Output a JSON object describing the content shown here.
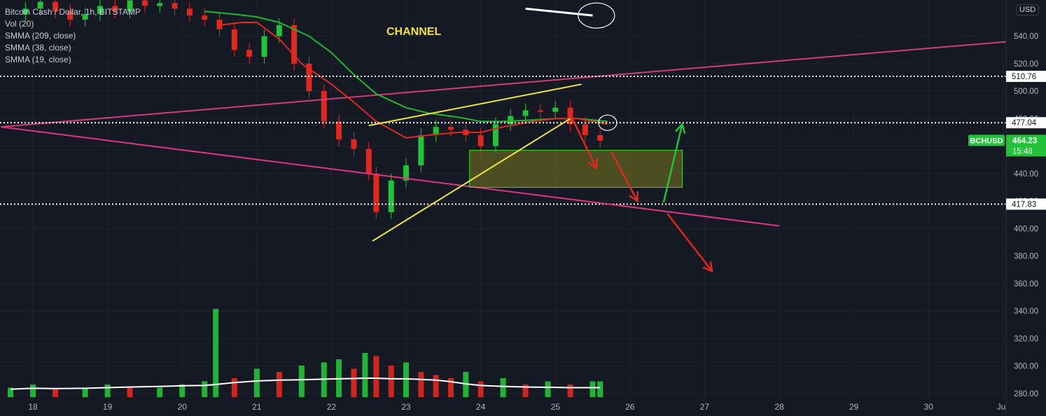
{
  "legend": {
    "symbol": "Bitcoin Cash / Dollar, 1h, BITSTAMP",
    "volume": "Vol (20)",
    "indicators": [
      "SMMA (209, close)",
      "SMMA (38, close)",
      "SMMA (19, close)"
    ]
  },
  "currency_badge": "USD",
  "colors": {
    "background": "#151924",
    "grid": "#1f2431",
    "candle_up": "#26a69a",
    "up": "#22c33b",
    "down": "#e0281e",
    "smma_long": "#d33b7e",
    "smma_mid": "#21b830",
    "smma_short": "#e0281e",
    "volume_ma": "#ffffff",
    "wedge": "#f2e33a",
    "zone_fill": "#7a7a20",
    "zone_border": "#44d430",
    "channel_line": "#e23384",
    "axis_text": "#b2b5be"
  },
  "chart_data": {
    "type": "candlestick",
    "symbol": "BCHUSD",
    "timeframe": "1h",
    "exchange": "BITSTAMP",
    "x_labels": [
      "18",
      "19",
      "20",
      "21",
      "22",
      "23",
      "24",
      "25",
      "26",
      "27",
      "28",
      "29",
      "30",
      "Juil"
    ],
    "y_ticks": [
      280,
      300,
      320,
      340,
      360,
      380,
      400,
      420,
      440,
      460,
      480,
      500,
      520,
      540
    ],
    "y_tick_labels": [
      "280.00",
      "300.00",
      "320.00",
      "340.00",
      "360.00",
      "380.00",
      "400.00",
      "420.00",
      "440.00",
      "460.00",
      "480.00",
      "500.00",
      "520.00",
      "540.00"
    ],
    "ylim": [
      276,
      557
    ],
    "xlim": [
      17.57,
      31.05
    ],
    "price_series": {
      "x": [
        17.9,
        18.1,
        18.3,
        18.5,
        18.7,
        18.9,
        19.1,
        19.3,
        19.5,
        19.7,
        19.9,
        20.1,
        20.3,
        20.5,
        20.7,
        20.9,
        21.1,
        21.3,
        21.5,
        21.7,
        21.9,
        22.1,
        22.3,
        22.5,
        22.6,
        22.8,
        23.0,
        23.2,
        23.4,
        23.6,
        23.8,
        24.0,
        24.2,
        24.4,
        24.6,
        24.8,
        25.0,
        25.2,
        25.4,
        25.6
      ],
      "values": [
        560,
        565,
        558,
        552,
        556,
        562,
        558,
        566,
        562,
        564,
        560,
        555,
        552,
        545,
        530,
        525,
        540,
        548,
        520,
        500,
        478,
        465,
        458,
        440,
        412,
        435,
        446,
        468,
        474,
        472,
        468,
        460,
        476,
        482,
        486,
        485,
        488,
        476,
        468,
        464
      ]
    },
    "smma_long": {
      "name": "SMMA (209, close)",
      "x": [
        17.57,
        31.05
      ],
      "values": [
        474,
        536
      ]
    },
    "smma_mid": {
      "name": "SMMA (38, close)",
      "x": [
        20.3,
        20.7,
        21.0,
        21.3,
        21.7,
        22.0,
        22.3,
        22.6,
        23.0,
        23.3,
        23.7,
        24.0,
        24.3,
        24.7,
        25.0,
        25.3,
        25.7
      ],
      "values": [
        558,
        556,
        554,
        550,
        540,
        528,
        512,
        498,
        488,
        484,
        481,
        478,
        478,
        479,
        480,
        480,
        478
      ]
    },
    "smma_short": {
      "name": "SMMA (19, close)",
      "x": [
        20.5,
        20.8,
        21.0,
        21.3,
        21.6,
        22.0,
        22.3,
        22.6,
        23.0,
        23.3,
        23.7,
        24.0,
        24.3,
        24.7,
        25.0,
        25.3,
        25.7
      ],
      "values": [
        548,
        550,
        550,
        538,
        520,
        505,
        492,
        478,
        466,
        468,
        470,
        470,
        474,
        478,
        480,
        480,
        476
      ]
    },
    "volume": {
      "x": [
        17.7,
        18.0,
        18.3,
        18.7,
        19.0,
        19.3,
        19.7,
        20.0,
        20.3,
        20.45,
        20.7,
        21.0,
        21.3,
        21.6,
        21.9,
        22.1,
        22.3,
        22.45,
        22.6,
        22.8,
        23.0,
        23.2,
        23.4,
        23.6,
        23.8,
        24.0,
        24.3,
        24.6,
        24.9,
        25.2,
        25.5,
        25.6
      ],
      "values": [
        3,
        4,
        3,
        3,
        4,
        3,
        3,
        4,
        5,
        28,
        6,
        9,
        8,
        10,
        11,
        12,
        9,
        14,
        13,
        10,
        11,
        8,
        7,
        6,
        8,
        5,
        6,
        4,
        5,
        4,
        5,
        5
      ],
      "ma_values": [
        2.5,
        2.8,
        2.7,
        2.8,
        3.0,
        3.2,
        3.4,
        3.6,
        3.7,
        4.0,
        4.6,
        5.1,
        5.4,
        5.5,
        5.7,
        5.8,
        5.9,
        6.0,
        6.0,
        5.8,
        5.8,
        5.6,
        5.4,
        4.9,
        4.2,
        3.7,
        3.4,
        3.2,
        3.1,
        3.0,
        3.0,
        3.0
      ]
    },
    "horizontal_levels": [
      510.76,
      477.04,
      417.83
    ],
    "last_price": 464.23,
    "last_price_label": "BCHUSD",
    "countdown": "15:48",
    "annotations": {
      "title_text": "CHANNEL",
      "rising_wedge": {
        "lower": [
          [
            22.55,
            391
          ],
          [
            25.2,
            480
          ]
        ],
        "upper": [
          [
            22.5,
            475
          ],
          [
            25.35,
            505
          ]
        ]
      },
      "zone": {
        "x": [
          23.85,
          26.7
        ],
        "y": [
          430,
          457
        ]
      },
      "channel_lower_line": [
        [
          17.57,
          474
        ],
        [
          28.0,
          402
        ]
      ],
      "arrows": [
        {
          "color": "down",
          "points": [
            [
              25.2,
              483
            ],
            [
              25.55,
              444
            ]
          ]
        },
        {
          "color": "down",
          "points": [
            [
              25.75,
              456
            ],
            [
              26.1,
              420
            ]
          ]
        },
        {
          "color": "up",
          "points": [
            [
              26.45,
              419
            ],
            [
              26.7,
              476
            ]
          ]
        },
        {
          "color": "down",
          "points": [
            [
              26.5,
              411
            ],
            [
              27.1,
              369
            ]
          ]
        }
      ],
      "circles": [
        [
          25.55,
          555
        ],
        [
          25.7,
          477
        ]
      ],
      "white_stroke": [
        [
          24.6,
          560
        ],
        [
          25.5,
          555
        ]
      ]
    }
  }
}
